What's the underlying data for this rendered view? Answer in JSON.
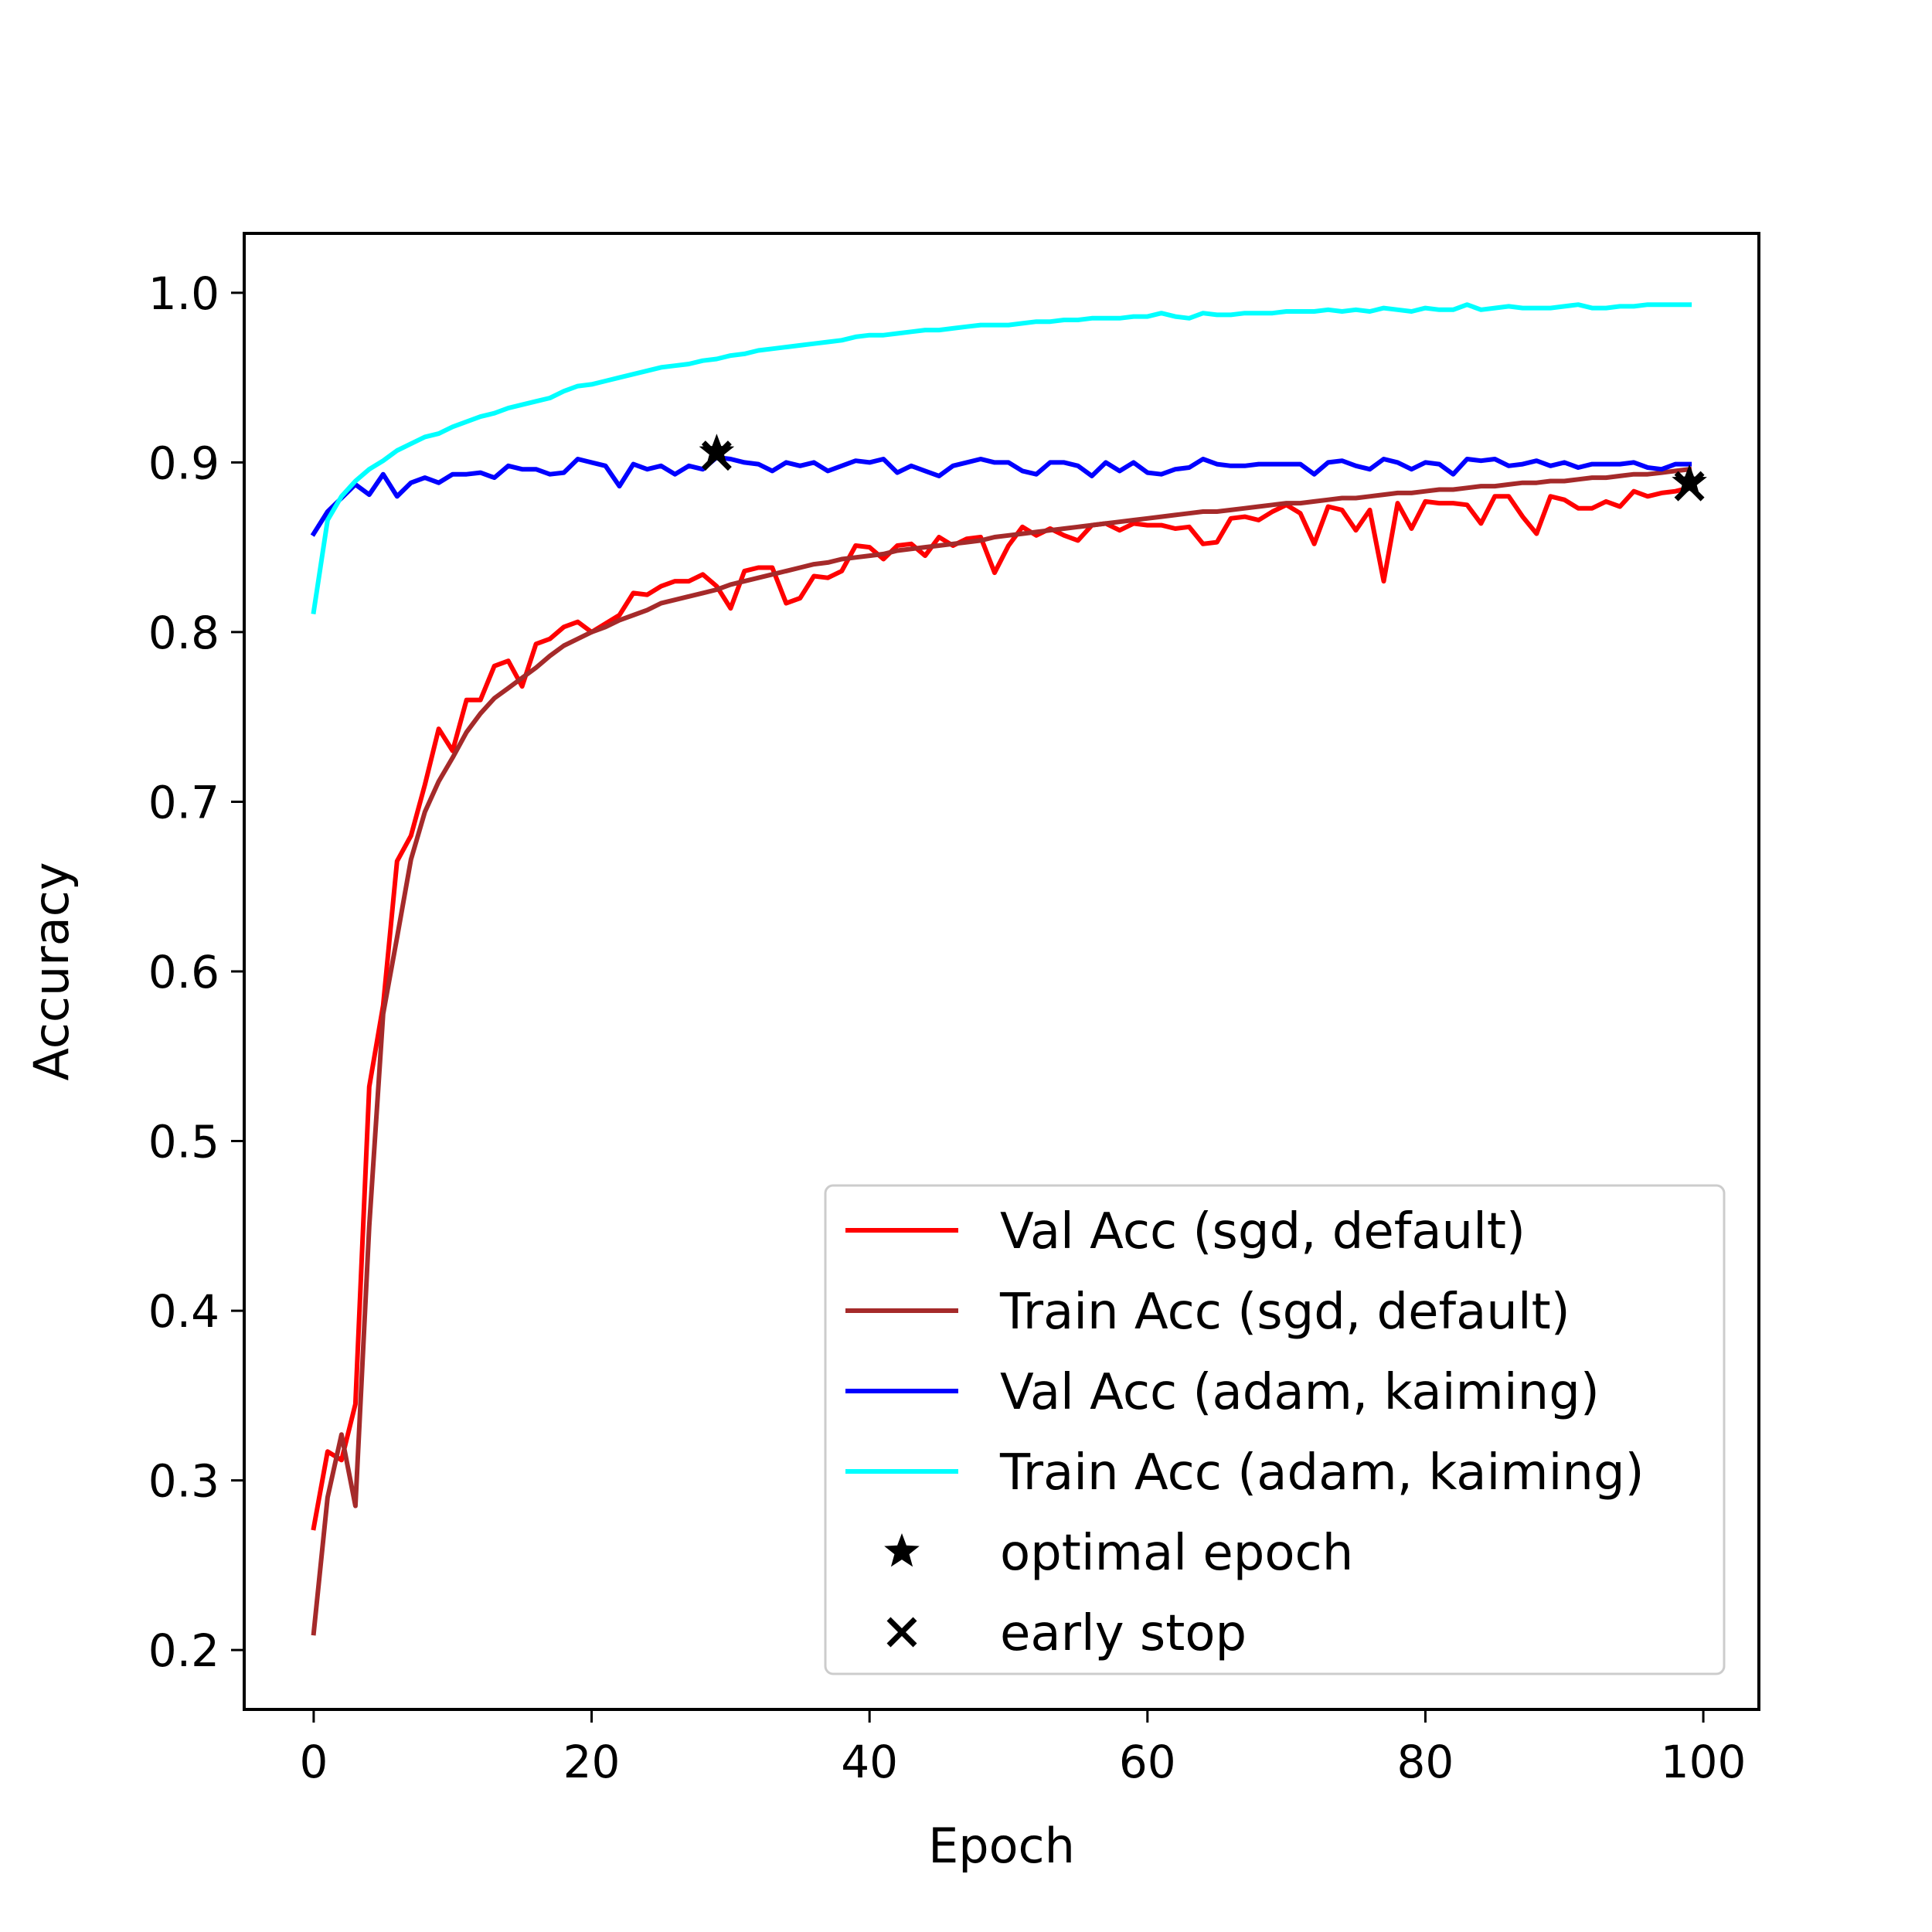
{
  "chart_data": {
    "type": "line",
    "xlabel": "Epoch",
    "ylabel": "Accuracy",
    "xlim": [
      -5,
      104
    ],
    "ylim": [
      0.165,
      1.035
    ],
    "xticks": [
      0,
      20,
      40,
      60,
      80,
      100
    ],
    "xtick_labels": [
      "0",
      "20",
      "40",
      "60",
      "80",
      "100"
    ],
    "yticks": [
      0.2,
      0.3,
      0.4,
      0.5,
      0.6,
      0.7,
      0.8,
      0.9,
      1.0
    ],
    "ytick_labels": [
      "0.2",
      "0.3",
      "0.4",
      "0.5",
      "0.6",
      "0.7",
      "0.8",
      "0.9",
      "1.0"
    ],
    "grid": false,
    "legend_position": "lower-right",
    "x": [
      0,
      1,
      2,
      3,
      4,
      5,
      6,
      7,
      8,
      9,
      10,
      11,
      12,
      13,
      14,
      15,
      16,
      17,
      18,
      19,
      20,
      21,
      22,
      23,
      24,
      25,
      26,
      27,
      28,
      29,
      30,
      31,
      32,
      33,
      34,
      35,
      36,
      37,
      38,
      39,
      40,
      41,
      42,
      43,
      44,
      45,
      46,
      47,
      48,
      49,
      50,
      51,
      52,
      53,
      54,
      55,
      56,
      57,
      58,
      59,
      60,
      61,
      62,
      63,
      64,
      65,
      66,
      67,
      68,
      69,
      70,
      71,
      72,
      73,
      74,
      75,
      76,
      77,
      78,
      79,
      80,
      81,
      82,
      83,
      84,
      85,
      86,
      87,
      88,
      89,
      90,
      91,
      92,
      93,
      94,
      95,
      96,
      97,
      98,
      99
    ],
    "series": [
      {
        "name": "Val Acc (sgd, default)",
        "color": "#ff0000",
        "values": [
          0.272,
          0.317,
          0.312,
          0.345,
          0.532,
          0.58,
          0.665,
          0.68,
          0.71,
          0.743,
          0.73,
          0.76,
          0.76,
          0.78,
          0.783,
          0.768,
          0.793,
          0.796,
          0.803,
          0.806,
          0.8,
          0.805,
          0.81,
          0.823,
          0.822,
          0.827,
          0.83,
          0.83,
          0.834,
          0.827,
          0.814,
          0.836,
          0.838,
          0.838,
          0.817,
          0.82,
          0.833,
          0.832,
          0.836,
          0.851,
          0.85,
          0.843,
          0.851,
          0.852,
          0.845,
          0.856,
          0.851,
          0.855,
          0.856,
          0.835,
          0.851,
          0.862,
          0.857,
          0.861,
          0.857,
          0.854,
          0.863,
          0.864,
          0.86,
          0.864,
          0.863,
          0.863,
          0.861,
          0.862,
          0.852,
          0.853,
          0.867,
          0.868,
          0.866,
          0.871,
          0.875,
          0.87,
          0.852,
          0.874,
          0.872,
          0.86,
          0.872,
          0.83,
          0.876,
          0.861,
          0.877,
          0.876,
          0.876,
          0.875,
          0.864,
          0.88,
          0.88,
          0.868,
          0.858,
          0.88,
          0.878,
          0.873,
          0.873,
          0.877,
          0.874,
          0.883,
          0.88,
          0.882,
          0.883,
          0.885
        ]
      },
      {
        "name": "Train Acc (sgd, default)",
        "color": "#a52a2a",
        "values": [
          0.21,
          0.29,
          0.327,
          0.285,
          0.45,
          0.575,
          0.62,
          0.666,
          0.694,
          0.712,
          0.726,
          0.741,
          0.752,
          0.761,
          0.767,
          0.773,
          0.779,
          0.786,
          0.792,
          0.796,
          0.8,
          0.803,
          0.807,
          0.81,
          0.813,
          0.817,
          0.819,
          0.821,
          0.823,
          0.825,
          0.828,
          0.83,
          0.832,
          0.834,
          0.836,
          0.838,
          0.84,
          0.841,
          0.843,
          0.844,
          0.845,
          0.846,
          0.848,
          0.849,
          0.85,
          0.851,
          0.852,
          0.853,
          0.854,
          0.856,
          0.857,
          0.858,
          0.859,
          0.86,
          0.861,
          0.862,
          0.863,
          0.864,
          0.865,
          0.866,
          0.867,
          0.868,
          0.869,
          0.87,
          0.871,
          0.871,
          0.872,
          0.873,
          0.874,
          0.875,
          0.876,
          0.876,
          0.877,
          0.878,
          0.879,
          0.879,
          0.88,
          0.881,
          0.882,
          0.882,
          0.883,
          0.884,
          0.884,
          0.885,
          0.886,
          0.886,
          0.887,
          0.888,
          0.888,
          0.889,
          0.889,
          0.89,
          0.891,
          0.891,
          0.892,
          0.893,
          0.893,
          0.894,
          0.895,
          0.896
        ]
      },
      {
        "name": "Val Acc (adam, kaiming)",
        "color": "#0000ff",
        "values": [
          0.858,
          0.871,
          0.879,
          0.887,
          0.881,
          0.893,
          0.88,
          0.888,
          0.891,
          0.888,
          0.893,
          0.893,
          0.894,
          0.891,
          0.898,
          0.896,
          0.896,
          0.893,
          0.894,
          0.902,
          0.9,
          0.898,
          0.886,
          0.899,
          0.896,
          0.898,
          0.893,
          0.898,
          0.896,
          0.903,
          0.902,
          0.9,
          0.899,
          0.895,
          0.9,
          0.898,
          0.9,
          0.895,
          0.898,
          0.901,
          0.9,
          0.902,
          0.894,
          0.898,
          0.895,
          0.892,
          0.898,
          0.9,
          0.902,
          0.9,
          0.9,
          0.895,
          0.893,
          0.9,
          0.9,
          0.898,
          0.892,
          0.9,
          0.895,
          0.9,
          0.894,
          0.893,
          0.896,
          0.897,
          0.902,
          0.899,
          0.898,
          0.898,
          0.899,
          0.899,
          0.899,
          0.899,
          0.893,
          0.9,
          0.901,
          0.898,
          0.896,
          0.902,
          0.9,
          0.896,
          0.9,
          0.899,
          0.893,
          0.902,
          0.901,
          0.902,
          0.898,
          0.899,
          0.901,
          0.898,
          0.9,
          0.897,
          0.899,
          0.899,
          0.899,
          0.9,
          0.897,
          0.896,
          0.899,
          0.899
        ]
      },
      {
        "name": "Train Acc (adam, kaiming)",
        "color": "#00ffff",
        "values": [
          0.812,
          0.866,
          0.88,
          0.889,
          0.896,
          0.901,
          0.907,
          0.911,
          0.915,
          0.917,
          0.921,
          0.924,
          0.927,
          0.929,
          0.932,
          0.934,
          0.936,
          0.938,
          0.942,
          0.945,
          0.946,
          0.948,
          0.95,
          0.952,
          0.954,
          0.956,
          0.957,
          0.958,
          0.96,
          0.961,
          0.963,
          0.964,
          0.966,
          0.967,
          0.968,
          0.969,
          0.97,
          0.971,
          0.972,
          0.974,
          0.975,
          0.975,
          0.976,
          0.977,
          0.978,
          0.978,
          0.979,
          0.98,
          0.981,
          0.981,
          0.981,
          0.982,
          0.983,
          0.983,
          0.984,
          0.984,
          0.985,
          0.985,
          0.985,
          0.986,
          0.986,
          0.988,
          0.986,
          0.985,
          0.988,
          0.987,
          0.987,
          0.988,
          0.988,
          0.988,
          0.989,
          0.989,
          0.989,
          0.99,
          0.989,
          0.99,
          0.989,
          0.991,
          0.99,
          0.989,
          0.991,
          0.99,
          0.99,
          0.993,
          0.99,
          0.991,
          0.992,
          0.991,
          0.991,
          0.991,
          0.992,
          0.993,
          0.991,
          0.991,
          0.992,
          0.992,
          0.993,
          0.993,
          0.993,
          0.993
        ]
      }
    ],
    "markers": [
      {
        "name": "optimal epoch",
        "symbol": "star",
        "color": "#000000",
        "points": [
          [
            29,
            0.906
          ],
          [
            99,
            0.888
          ]
        ]
      },
      {
        "name": "early stop",
        "symbol": "x",
        "color": "#000000",
        "points": [
          [
            29,
            0.904
          ],
          [
            99,
            0.886
          ]
        ]
      }
    ],
    "legend": [
      {
        "label": "Val Acc (sgd, default)",
        "kind": "line",
        "color": "#ff0000"
      },
      {
        "label": "Train Acc (sgd, default)",
        "kind": "line",
        "color": "#a52a2a"
      },
      {
        "label": "Val Acc (adam, kaiming)",
        "kind": "line",
        "color": "#0000ff"
      },
      {
        "label": "Train Acc (adam, kaiming)",
        "kind": "line",
        "color": "#00ffff"
      },
      {
        "label": "optimal epoch",
        "kind": "star",
        "color": "#000000"
      },
      {
        "label": "early stop",
        "kind": "x",
        "color": "#000000"
      }
    ]
  }
}
